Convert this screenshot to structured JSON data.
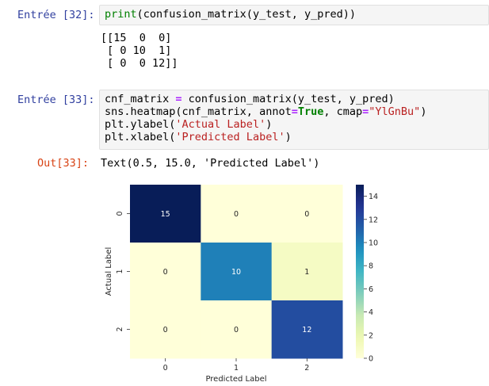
{
  "cells": {
    "cell32": {
      "prompt": "Entrée [32]:",
      "code_print": "print",
      "code_rest": "(confusion_matrix(y_test, y_pred))",
      "output": "[[15  0  0]\n [ 0 10  1]\n [ 0  0 12]]"
    },
    "cell33": {
      "prompt": "Entrée [33]:",
      "line1_a": "cnf_matrix ",
      "line1_eq": "=",
      "line1_b": " confusion_matrix(y_test, y_pred)",
      "line2_a": "sns.heatmap(cnf_matrix, annot",
      "line2_eq": "=",
      "line2_true": "True",
      "line2_b": ", cmap",
      "line2_eq2": "=",
      "line2_str": "\"YlGnBu\"",
      "line2_c": ")",
      "line3_a": "plt.ylabel(",
      "line3_str": "'Actual Label'",
      "line3_b": ")",
      "line4_a": "plt.xlabel(",
      "line4_str": "'Predicted Label'",
      "line4_b": ")",
      "out_prompt": "Out[33]:",
      "out_text": "Text(0.5, 15.0, 'Predicted Label')"
    }
  },
  "colors": {
    "in_prompt": "#303f9f",
    "out_prompt": "#d84315"
  },
  "chart_data": {
    "type": "heatmap",
    "rows": [
      "0",
      "1",
      "2"
    ],
    "cols": [
      "0",
      "1",
      "2"
    ],
    "values": [
      [
        15,
        0,
        0
      ],
      [
        0,
        10,
        1
      ],
      [
        0,
        0,
        12
      ]
    ],
    "xlabel": "Predicted Label",
    "ylabel": "Actual Label",
    "cmap": "YlGnBu",
    "vmin": 0,
    "vmax": 15,
    "colorbar_ticks": [
      0,
      2,
      4,
      6,
      8,
      10,
      12,
      14
    ]
  }
}
